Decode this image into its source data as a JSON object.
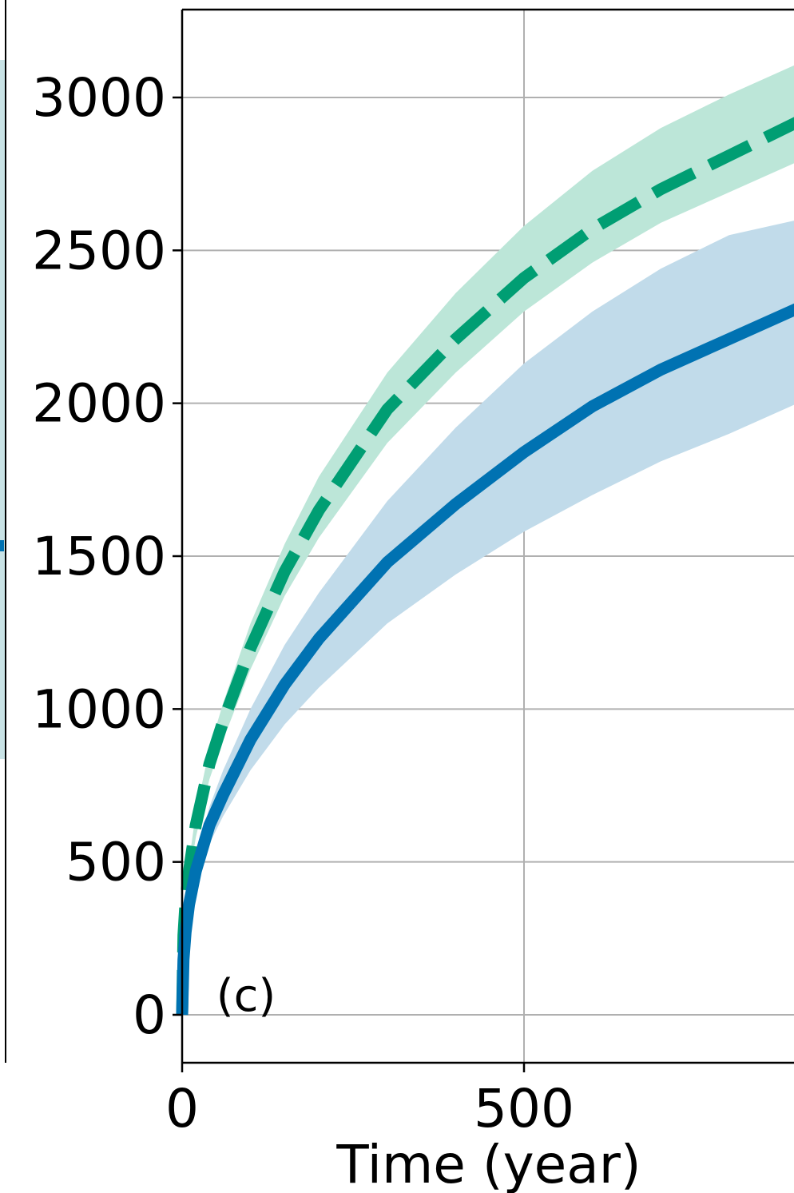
{
  "chart_data": {
    "type": "line",
    "panel_label": "(c)",
    "xlabel": "Time (year)",
    "ylabel": "",
    "xlim": [
      0,
      900
    ],
    "ylim": [
      -160,
      3280
    ],
    "x_ticks": [
      0,
      500
    ],
    "y_ticks": [
      0,
      500,
      1000,
      1500,
      2000,
      2500,
      3000
    ],
    "grid": true,
    "colors": {
      "blue": "#0072b2",
      "green": "#009e73",
      "blue_band": "#c1dbea",
      "green_band": "#bce6d8",
      "grid": "#b0b0b0"
    },
    "series": [
      {
        "key": "green",
        "style": "dashed",
        "x": [
          0,
          2,
          5,
          10,
          20,
          40,
          60,
          100,
          150,
          200,
          300,
          400,
          500,
          600,
          700,
          800,
          900
        ],
        "mean": [
          0,
          260,
          370,
          470,
          620,
          820,
          960,
          1200,
          1450,
          1650,
          1980,
          2210,
          2410,
          2570,
          2700,
          2810,
          2920
        ],
        "lower": [
          0,
          240,
          345,
          440,
          580,
          770,
          900,
          1130,
          1370,
          1560,
          1870,
          2100,
          2300,
          2460,
          2590,
          2690,
          2790
        ],
        "upper": [
          0,
          290,
          400,
          500,
          660,
          870,
          1020,
          1280,
          1540,
          1760,
          2100,
          2360,
          2580,
          2760,
          2900,
          3010,
          3110
        ]
      },
      {
        "key": "blue",
        "style": "solid",
        "x": [
          0,
          2,
          5,
          10,
          20,
          40,
          60,
          100,
          150,
          200,
          300,
          400,
          500,
          600,
          700,
          800,
          900
        ],
        "mean": [
          0,
          180,
          270,
          360,
          470,
          620,
          720,
          900,
          1080,
          1230,
          1480,
          1670,
          1840,
          1990,
          2110,
          2210,
          2310
        ],
        "lower": [
          0,
          170,
          250,
          330,
          430,
          560,
          650,
          800,
          950,
          1070,
          1280,
          1440,
          1580,
          1700,
          1810,
          1900,
          2000
        ],
        "upper": [
          0,
          195,
          290,
          390,
          510,
          680,
          800,
          1000,
          1210,
          1380,
          1680,
          1920,
          2130,
          2300,
          2440,
          2550,
          2600
        ]
      }
    ]
  }
}
